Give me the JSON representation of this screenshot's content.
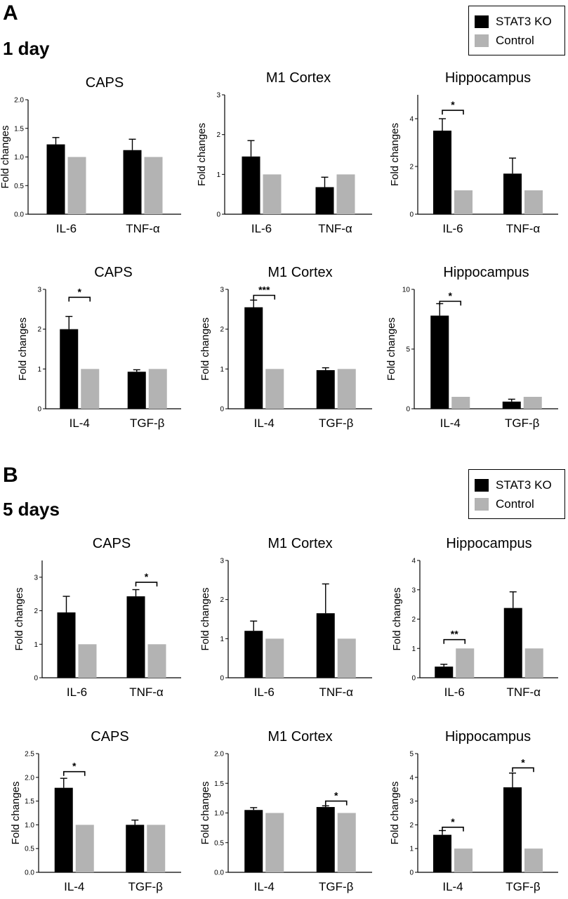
{
  "panels": [
    {
      "letter": "A",
      "timepoint": "1 day",
      "legend": [
        {
          "label": "STAT3 KO",
          "color": "#000000"
        },
        {
          "label": "Control",
          "color": "#b3b3b3"
        }
      ]
    },
    {
      "letter": "B",
      "timepoint": "5 days",
      "legend": [
        {
          "label": "STAT3 KO",
          "color": "#000000"
        },
        {
          "label": "Control",
          "color": "#b3b3b3"
        }
      ]
    }
  ],
  "chart_data": [
    {
      "type": "bar",
      "title": "CAPS",
      "ylabel": "Fold changes",
      "categories": [
        "IL-6",
        "TNF-α"
      ],
      "series": [
        {
          "name": "STAT3 KO",
          "values": [
            1.22,
            1.12
          ],
          "errors": [
            0.12,
            0.19
          ]
        },
        {
          "name": "Control",
          "values": [
            1.0,
            1.0
          ],
          "errors": [
            0,
            0
          ]
        }
      ],
      "ylim": [
        0,
        2.0
      ],
      "yticks": [
        "0.0",
        "0.5",
        "1.0",
        "1.5",
        "2.0"
      ],
      "significance": []
    },
    {
      "type": "bar",
      "title": "M1 Cortex",
      "ylabel": "Fold changes",
      "categories": [
        "IL-6",
        "TNF-α"
      ],
      "series": [
        {
          "name": "STAT3 KO",
          "values": [
            1.45,
            0.68
          ],
          "errors": [
            0.4,
            0.25
          ]
        },
        {
          "name": "Control",
          "values": [
            1.0,
            1.0
          ],
          "errors": [
            0,
            0
          ]
        }
      ],
      "ylim": [
        0,
        3
      ],
      "yticks": [
        "0",
        "1",
        "2",
        "3"
      ],
      "significance": []
    },
    {
      "type": "bar",
      "title": "Hippocampus",
      "ylabel": "Fold changes",
      "categories": [
        "IL-6",
        "TNF-α"
      ],
      "series": [
        {
          "name": "STAT3 KO",
          "values": [
            3.5,
            1.7
          ],
          "errors": [
            0.5,
            0.65
          ]
        },
        {
          "name": "Control",
          "values": [
            1.0,
            1.0
          ],
          "errors": [
            0,
            0
          ]
        }
      ],
      "ylim": [
        0,
        5
      ],
      "yticks": [
        "0",
        "2",
        "4"
      ],
      "significance": [
        {
          "category": 0,
          "label": "*",
          "y": 4.35
        }
      ]
    },
    {
      "type": "bar",
      "title": "CAPS",
      "ylabel": "Fold changes",
      "categories": [
        "IL-4",
        "TGF-β"
      ],
      "series": [
        {
          "name": "STAT3 KO",
          "values": [
            2.0,
            0.93
          ],
          "errors": [
            0.32,
            0.05
          ]
        },
        {
          "name": "Control",
          "values": [
            1.0,
            1.0
          ],
          "errors": [
            0,
            0
          ]
        }
      ],
      "ylim": [
        0,
        3
      ],
      "yticks": [
        "0",
        "1",
        "2",
        "3"
      ],
      "significance": [
        {
          "category": 0,
          "label": "*",
          "y": 2.8
        }
      ]
    },
    {
      "type": "bar",
      "title": "M1 Cortex",
      "ylabel": "Fold changes",
      "categories": [
        "IL-4",
        "TGF-β"
      ],
      "series": [
        {
          "name": "STAT3 KO",
          "values": [
            2.55,
            0.97
          ],
          "errors": [
            0.18,
            0.06
          ]
        },
        {
          "name": "Control",
          "values": [
            1.0,
            1.0
          ],
          "errors": [
            0,
            0
          ]
        }
      ],
      "ylim": [
        0,
        3
      ],
      "yticks": [
        "0",
        "1",
        "2",
        "3"
      ],
      "significance": [
        {
          "category": 0,
          "label": "***",
          "y": 2.85
        }
      ]
    },
    {
      "type": "bar",
      "title": "Hippocampus",
      "ylabel": "Fold changes",
      "categories": [
        "IL-4",
        "TGF-β"
      ],
      "series": [
        {
          "name": "STAT3 KO",
          "values": [
            7.8,
            0.6
          ],
          "errors": [
            1.0,
            0.2
          ]
        },
        {
          "name": "Control",
          "values": [
            1.0,
            1.0
          ],
          "errors": [
            0,
            0
          ]
        }
      ],
      "ylim": [
        0,
        10
      ],
      "yticks": [
        "0",
        "5",
        "10"
      ],
      "significance": [
        {
          "category": 0,
          "label": "*",
          "y": 9.0
        }
      ]
    },
    {
      "type": "bar",
      "title": "CAPS",
      "ylabel": "Fold changes",
      "categories": [
        "IL-6",
        "TNF-α"
      ],
      "series": [
        {
          "name": "STAT3 KO",
          "values": [
            1.95,
            2.43
          ],
          "errors": [
            0.48,
            0.2
          ]
        },
        {
          "name": "Control",
          "values": [
            1.0,
            1.0
          ],
          "errors": [
            0,
            0
          ]
        }
      ],
      "ylim": [
        0,
        3.5
      ],
      "yticks": [
        "0",
        "1",
        "2",
        "3"
      ],
      "significance": [
        {
          "category": 1,
          "label": "*",
          "y": 2.85
        }
      ]
    },
    {
      "type": "bar",
      "title": "M1 Cortex",
      "ylabel": "Fold changes",
      "categories": [
        "IL-6",
        "TNF-α"
      ],
      "series": [
        {
          "name": "STAT3 KO",
          "values": [
            1.2,
            1.65
          ],
          "errors": [
            0.25,
            0.75
          ]
        },
        {
          "name": "Control",
          "values": [
            1.0,
            1.0
          ],
          "errors": [
            0,
            0
          ]
        }
      ],
      "ylim": [
        0,
        3
      ],
      "yticks": [
        "0",
        "1",
        "2",
        "3"
      ],
      "significance": []
    },
    {
      "type": "bar",
      "title": "Hippocampus",
      "ylabel": "Fold changes",
      "categories": [
        "IL-6",
        "TNF-α"
      ],
      "series": [
        {
          "name": "STAT3 KO",
          "values": [
            0.38,
            2.38
          ],
          "errors": [
            0.08,
            0.55
          ]
        },
        {
          "name": "Control",
          "values": [
            1.0,
            1.0
          ],
          "errors": [
            0,
            0
          ]
        }
      ],
      "ylim": [
        0,
        4
      ],
      "yticks": [
        "0",
        "1",
        "2",
        "3",
        "4"
      ],
      "significance": [
        {
          "category": 0,
          "label": "**",
          "y": 1.3
        }
      ]
    },
    {
      "type": "bar",
      "title": "CAPS",
      "ylabel": "Fold changes",
      "categories": [
        "IL-4",
        "TGF-β"
      ],
      "series": [
        {
          "name": "STAT3 KO",
          "values": [
            1.78,
            1.0
          ],
          "errors": [
            0.2,
            0.1
          ]
        },
        {
          "name": "Control",
          "values": [
            1.0,
            1.0
          ],
          "errors": [
            0,
            0
          ]
        }
      ],
      "ylim": [
        0,
        2.5
      ],
      "yticks": [
        "0.0",
        "0.5",
        "1.0",
        "1.5",
        "2.0",
        "2.5"
      ],
      "significance": [
        {
          "category": 0,
          "label": "*",
          "y": 2.12
        }
      ]
    },
    {
      "type": "bar",
      "title": "M1 Cortex",
      "ylabel": "Fold changes",
      "categories": [
        "IL-4",
        "TGF-β"
      ],
      "series": [
        {
          "name": "STAT3 KO",
          "values": [
            1.05,
            1.1
          ],
          "errors": [
            0.04,
            0.02
          ]
        },
        {
          "name": "Control",
          "values": [
            1.0,
            1.0
          ],
          "errors": [
            0,
            0
          ]
        }
      ],
      "ylim": [
        0,
        2.0
      ],
      "yticks": [
        "0.0",
        "0.5",
        "1.0",
        "1.5",
        "2.0"
      ],
      "significance": [
        {
          "category": 1,
          "label": "*",
          "y": 1.2
        }
      ]
    },
    {
      "type": "bar",
      "title": "Hippocampus",
      "ylabel": "Fold changes",
      "categories": [
        "IL-4",
        "TGF-β"
      ],
      "series": [
        {
          "name": "STAT3 KO",
          "values": [
            1.58,
            3.58
          ],
          "errors": [
            0.18,
            0.6
          ]
        },
        {
          "name": "Control",
          "values": [
            1.0,
            1.0
          ],
          "errors": [
            0,
            0
          ]
        }
      ],
      "ylim": [
        0,
        5
      ],
      "yticks": [
        "0",
        "1",
        "2",
        "3",
        "4",
        "5"
      ],
      "significance": [
        {
          "category": 0,
          "label": "*",
          "y": 1.9
        },
        {
          "category": 1,
          "label": "*",
          "y": 4.4
        }
      ]
    }
  ]
}
